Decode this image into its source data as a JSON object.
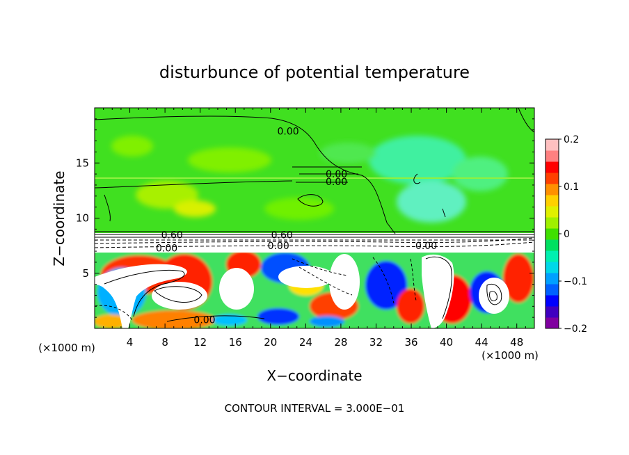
{
  "chart_data": {
    "type": "heatmap",
    "title": "disturbunce of potential temperature",
    "xlabel": "X−coordinate",
    "ylabel": "Z−coordinate",
    "x_unit_label": "(×1000 m)",
    "y_unit_label": "(×1000 m)",
    "footer": "CONTOUR INTERVAL = 3.000E−01",
    "xlim": [
      0,
      50
    ],
    "ylim": [
      0,
      20
    ],
    "x_ticks": [
      {
        "value": 4,
        "label": "4"
      },
      {
        "value": 8,
        "label": "8"
      },
      {
        "value": 12,
        "label": "12"
      },
      {
        "value": 16,
        "label": "16"
      },
      {
        "value": 20,
        "label": "20"
      },
      {
        "value": 24,
        "label": "24"
      },
      {
        "value": 28,
        "label": "28"
      },
      {
        "value": 32,
        "label": "32"
      },
      {
        "value": 36,
        "label": "36"
      },
      {
        "value": 40,
        "label": "40"
      },
      {
        "value": 44,
        "label": "44"
      },
      {
        "value": 48,
        "label": "48"
      }
    ],
    "y_ticks": [
      {
        "value": 5,
        "label": "5"
      },
      {
        "value": 10,
        "label": "10"
      },
      {
        "value": 15,
        "label": "15"
      }
    ],
    "colorbar": {
      "min": -0.2,
      "max": 0.2,
      "ticks": [
        {
          "value": 0.2,
          "label": "0.2"
        },
        {
          "value": 0.1,
          "label": "0.1"
        },
        {
          "value": 0,
          "label": "0"
        },
        {
          "value": -0.1,
          "label": "−0.1"
        },
        {
          "value": -0.2,
          "label": "−0.2"
        }
      ],
      "colors": [
        "#8000a0",
        "#4000c0",
        "#0000ff",
        "#0060ff",
        "#00a0ff",
        "#00d8e8",
        "#00f0b0",
        "#00e060",
        "#40e000",
        "#a0f000",
        "#e0f000",
        "#ffd000",
        "#ff9000",
        "#ff4000",
        "#ff0000",
        "#ff8080",
        "#ffc0c0"
      ]
    },
    "contour_labels": [
      {
        "x": 22,
        "y": 17.9,
        "text": "0.00"
      },
      {
        "x": 27.5,
        "y": 14.0,
        "text": "0.00"
      },
      {
        "x": 27.5,
        "y": 13.3,
        "text": "0.00"
      },
      {
        "x": 8.8,
        "y": 8.5,
        "text": "0.60"
      },
      {
        "x": 21.3,
        "y": 8.5,
        "text": "0.60"
      },
      {
        "x": 8.2,
        "y": 7.3,
        "text": "0.00"
      },
      {
        "x": 20.9,
        "y": 7.5,
        "text": "0.00"
      },
      {
        "x": 37.7,
        "y": 7.5,
        "text": "0.00"
      },
      {
        "x": 12.5,
        "y": 0.8,
        "text": "0.00"
      }
    ]
  }
}
